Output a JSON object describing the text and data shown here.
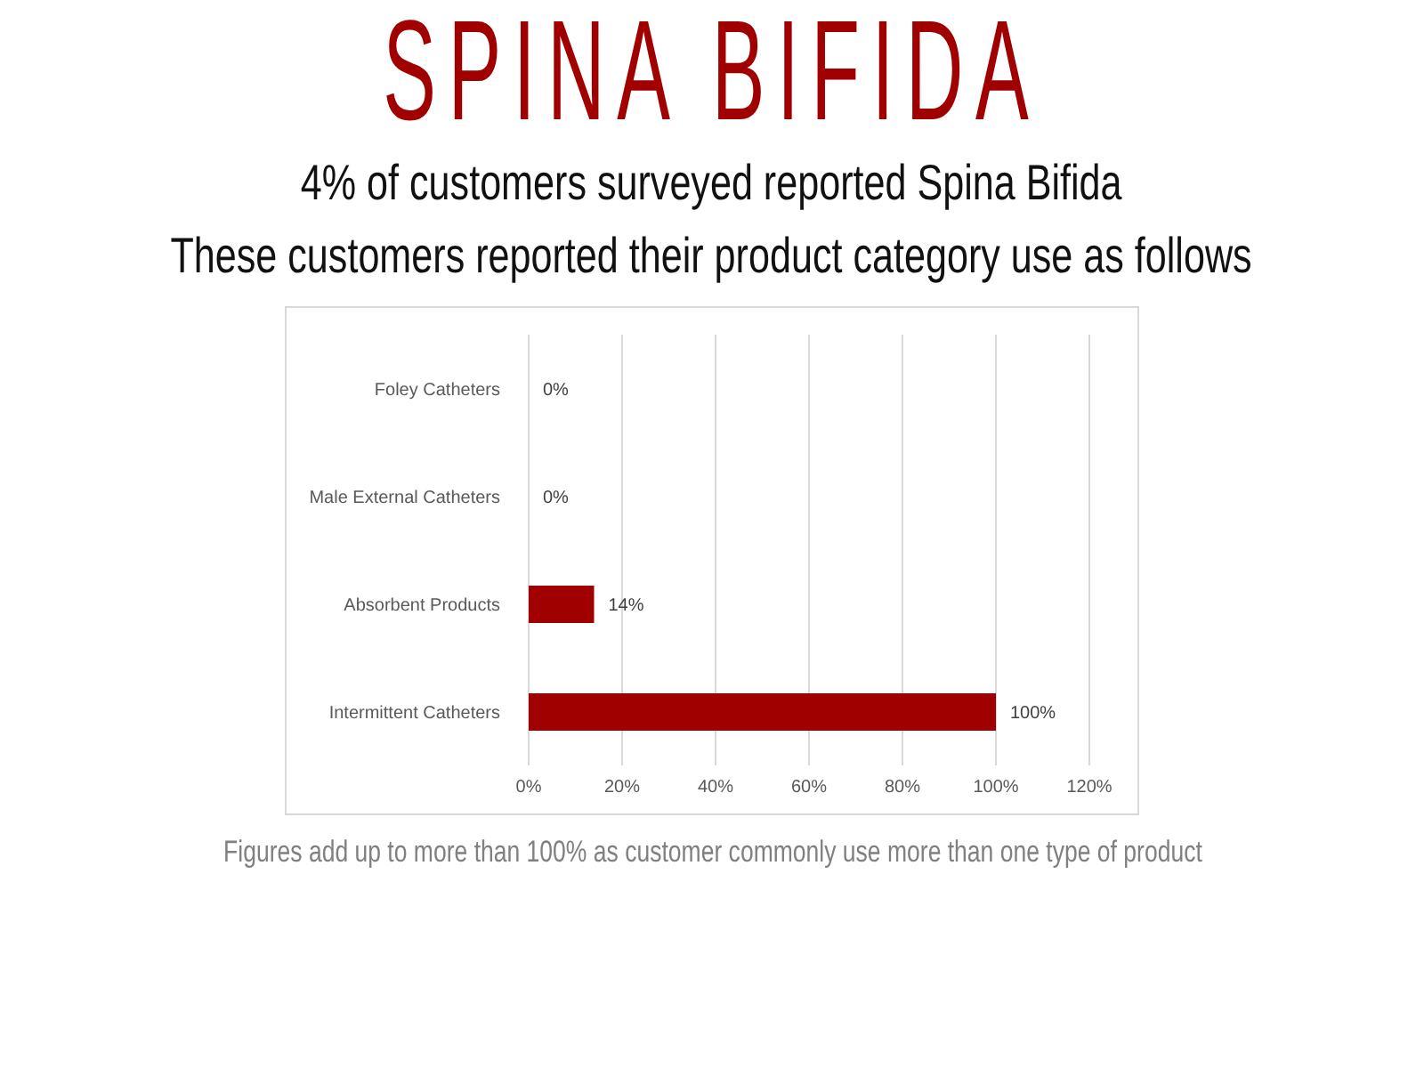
{
  "chart_data": {
    "type": "bar",
    "orientation": "horizontal",
    "title": "SPINA BIFIDA",
    "subtitle": "4% of customers surveyed reported Spina Bifida\nThese customers reported their product category use as follows",
    "categories": [
      "Foley Catheters",
      "Male External Catheters",
      "Absorbent Products",
      "Intermittent Catheters"
    ],
    "values": [
      0,
      0,
      14,
      100
    ],
    "value_labels": [
      "0%",
      "0%",
      "14%",
      "100%"
    ],
    "color": "#a00000",
    "xlim": [
      0,
      120
    ],
    "xticks": [
      {
        "value": 0,
        "label": "0%"
      },
      {
        "value": 20,
        "label": "20%"
      },
      {
        "value": 40,
        "label": "40%"
      },
      {
        "value": 60,
        "label": "60%"
      },
      {
        "value": 80,
        "label": "80%"
      },
      {
        "value": 100,
        "label": "100%"
      },
      {
        "value": 120,
        "label": "120%"
      }
    ],
    "grid": "x",
    "annotations": [
      "Figures add up to more than 100% as customer commonly use more than one type of product"
    ]
  }
}
